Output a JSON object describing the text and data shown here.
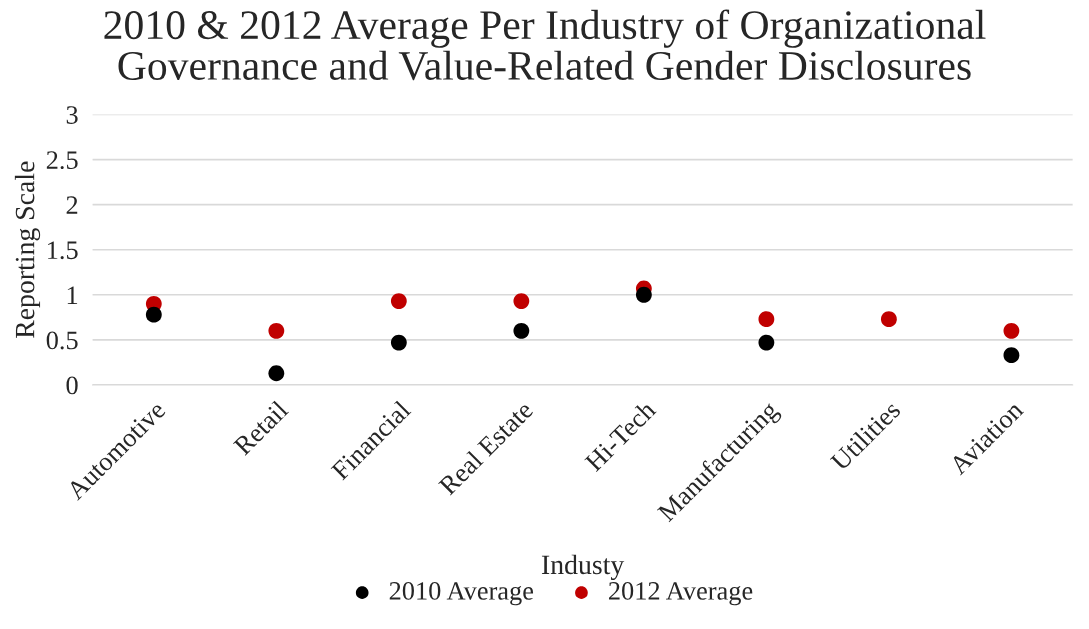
{
  "chart_data": {
    "type": "scatter",
    "title": "2010 & 2012 Average Per Industry of Organizational\nGovernance and Value-Related Gender Disclosures",
    "xlabel": "Industy",
    "ylabel": "Reporting Scale",
    "categories": [
      "Automotive",
      "Retail",
      "Financial",
      "Real Estate",
      "Hi-Tech",
      "Manufacturing",
      "Utilities",
      "Aviation"
    ],
    "series": [
      {
        "name": "2010 Average",
        "color": "#000000",
        "values": [
          0.78,
          0.13,
          0.47,
          0.6,
          1.0,
          0.47,
          null,
          0.33
        ]
      },
      {
        "name": "2012 Average",
        "color": "#c00000",
        "values": [
          0.9,
          0.6,
          0.93,
          0.93,
          1.07,
          0.73,
          0.73,
          0.6
        ]
      }
    ],
    "ylim": [
      0,
      3
    ],
    "yticks": [
      0,
      0.5,
      1,
      1.5,
      2,
      2.5,
      3
    ],
    "grid": "y",
    "legend": "bottom",
    "marker": "circle"
  }
}
